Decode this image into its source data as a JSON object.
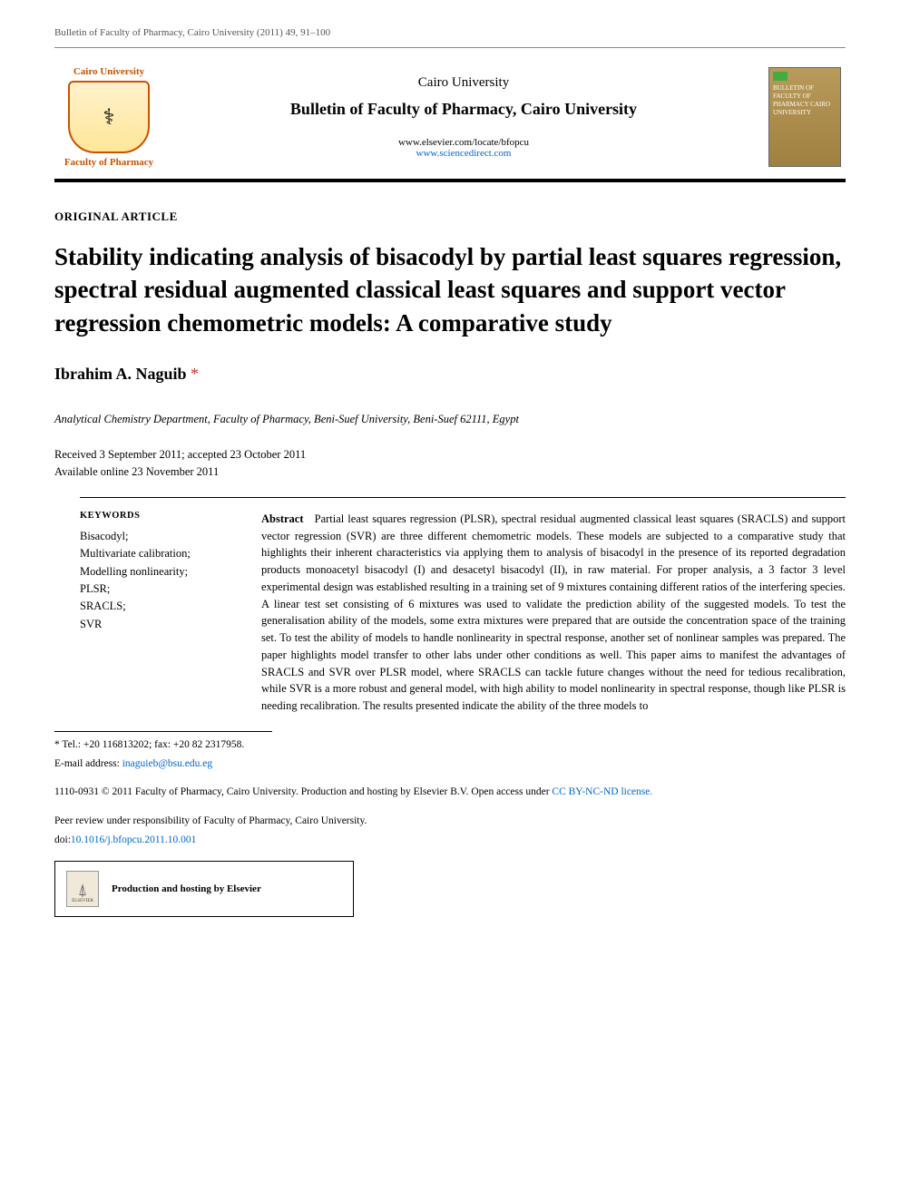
{
  "citation": "Bulletin of Faculty of Pharmacy, Cairo University (2011) 49, 91–100",
  "header": {
    "logo_left": {
      "top_text": "Cairo University",
      "bottom_text": "Faculty of Pharmacy"
    },
    "publisher": "Cairo University",
    "journal": "Bulletin of Faculty of Pharmacy, Cairo University",
    "url_plain": "www.elsevier.com/locate/bfopcu",
    "url_link": "www.sciencedirect.com",
    "cover_lines": "BULLETIN OF FACULTY OF PHARMACY CAIRO UNIVERSITY"
  },
  "article_type": "ORIGINAL ARTICLE",
  "title": "Stability indicating analysis of bisacodyl by partial least squares regression, spectral residual augmented classical least squares and support vector regression chemometric models: A comparative study",
  "author": "Ibrahim A. Naguib",
  "author_marker": "*",
  "affiliation": "Analytical Chemistry Department, Faculty of Pharmacy, Beni-Suef University, Beni-Suef 62111, Egypt",
  "dates": {
    "received_accepted": "Received 3 September 2011; accepted 23 October 2011",
    "online": "Available online 23 November 2011"
  },
  "keywords": {
    "head": "KEYWORDS",
    "items": [
      "Bisacodyl;",
      "Multivariate calibration;",
      "Modelling nonlinearity;",
      "PLSR;",
      "SRACLS;",
      "SVR"
    ]
  },
  "abstract": {
    "head": "Abstract",
    "body": "Partial least squares regression (PLSR), spectral residual augmented classical least squares (SRACLS) and support vector regression (SVR) are three different chemometric models. These models are subjected to a comparative study that highlights their inherent characteristics via applying them to analysis of bisacodyl in the presence of its reported degradation products monoacetyl bisacodyl (I) and desacetyl bisacodyl (II), in raw material. For proper analysis, a 3 factor 3 level experimental design was established resulting in a training set of 9 mixtures containing different ratios of the interfering species. A linear test set consisting of 6 mixtures was used to validate the prediction ability of the suggested models. To test the generalisation ability of the models, some extra mixtures were prepared that are outside the concentration space of the training set. To test the ability of models to handle nonlinearity in spectral response, another set of nonlinear samples was prepared. The paper highlights model transfer to other labs under other conditions as well. This paper aims to manifest the advantages of SRACLS and SVR over PLSR model, where SRACLS can tackle future changes without the need for tedious recalibration, while SVR is a more robust and general model, with high ability to model nonlinearity in spectral response, though like PLSR is needing recalibration. The results presented indicate the ability of the three models to"
  },
  "footnotes": {
    "corr": "* Tel.: +20 116813202; fax: +20 82 2317958.",
    "email_label": "E-mail address: ",
    "email": "inaguieb@bsu.edu.eg",
    "copyright_prefix": "1110-0931 © 2011 Faculty of Pharmacy, Cairo University. Production and hosting by Elsevier B.V. ",
    "copyright_open": "Open access under ",
    "copyright_license": "CC BY-NC-ND license.",
    "peer": "Peer review under responsibility of Faculty of Pharmacy, Cairo University.",
    "doi_label": "doi:",
    "doi": "10.1016/j.bfopcu.2011.10.001",
    "hosting": "Production and hosting by Elsevier",
    "elsevier_label": "ELSEVIER"
  },
  "colors": {
    "link": "#0066cc",
    "accent_orange": "#cc5200",
    "asterisk": "#cc3333",
    "cover_bg": "#b89a5a"
  }
}
